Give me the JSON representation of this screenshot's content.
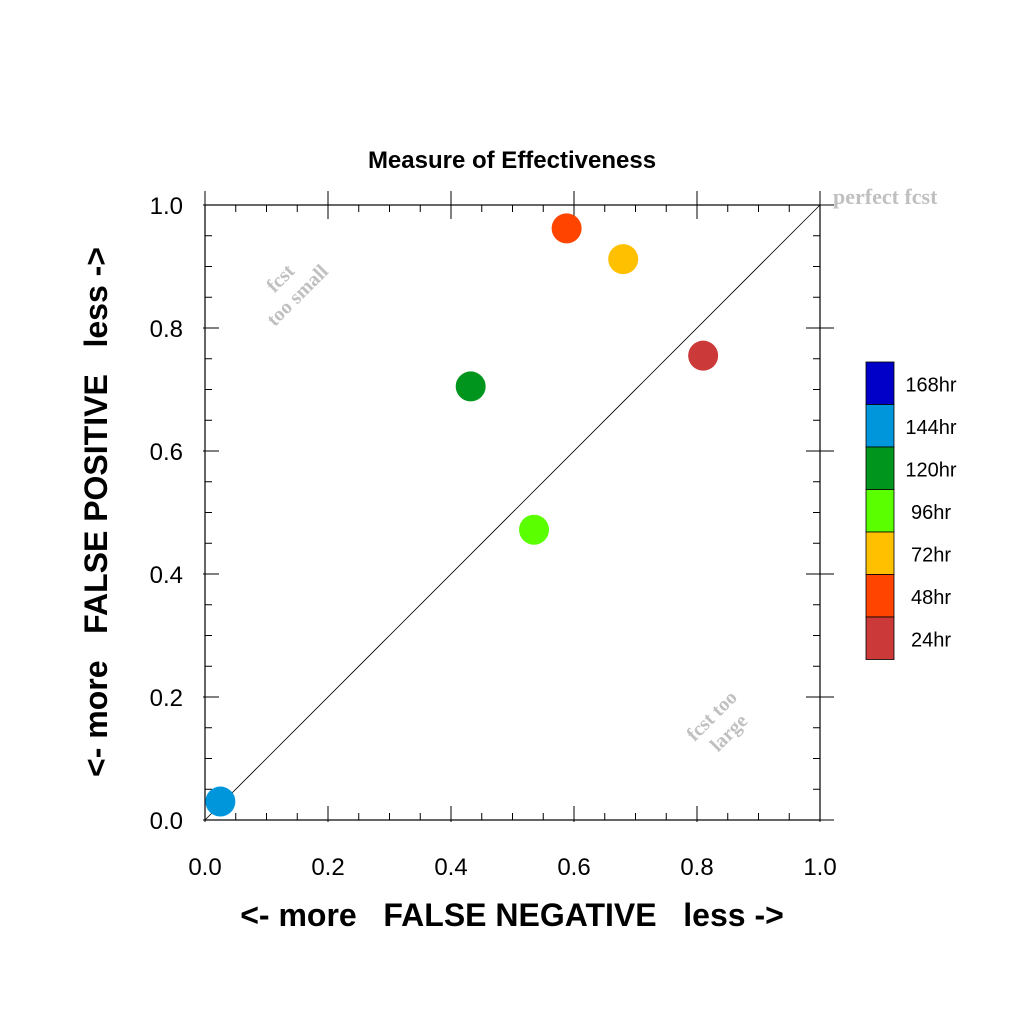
{
  "chart_data": {
    "type": "scatter",
    "title": "Measure of Effectiveness",
    "xlabel": "<- more   FALSE NEGATIVE   less ->",
    "ylabel": "<- more   FALSE POSITIVE   less ->",
    "xlim": [
      0,
      1
    ],
    "ylim": [
      0,
      1
    ],
    "xticks": [
      "0.0",
      "0.2",
      "0.4",
      "0.6",
      "0.8",
      "1.0"
    ],
    "yticks": [
      "0.0",
      "0.2",
      "0.4",
      "0.6",
      "0.8",
      "1.0"
    ],
    "grid": false,
    "diagonal_line": true,
    "annotations": {
      "perfect": "perfect fcst",
      "too_small_1": "fcst",
      "too_small_2": "too small",
      "too_large_1": "fcst too",
      "too_large_2": "large"
    },
    "legend": {
      "placement": "right",
      "entries": [
        {
          "label": "168hr",
          "color": "#0000c8"
        },
        {
          "label": "144hr",
          "color": "#0096dc"
        },
        {
          "label": "120hr",
          "color": "#00961e"
        },
        {
          "label": "96hr",
          "color": "#5aff00"
        },
        {
          "label": "72hr",
          "color": "#ffc000"
        },
        {
          "label": "48hr",
          "color": "#ff4400"
        },
        {
          "label": "24hr",
          "color": "#cc3939"
        }
      ]
    },
    "points": [
      {
        "lead": "24hr",
        "x": 0.81,
        "y": 0.755,
        "color": "#cc3939"
      },
      {
        "lead": "48hr",
        "x": 0.588,
        "y": 0.962,
        "color": "#ff4400"
      },
      {
        "lead": "72hr",
        "x": 0.68,
        "y": 0.912,
        "color": "#ffc000"
      },
      {
        "lead": "96hr",
        "x": 0.535,
        "y": 0.472,
        "color": "#5aff00"
      },
      {
        "lead": "120hr",
        "x": 0.432,
        "y": 0.705,
        "color": "#00961e"
      },
      {
        "lead": "144hr",
        "x": 0.025,
        "y": 0.03,
        "color": "#0096dc"
      }
    ]
  }
}
